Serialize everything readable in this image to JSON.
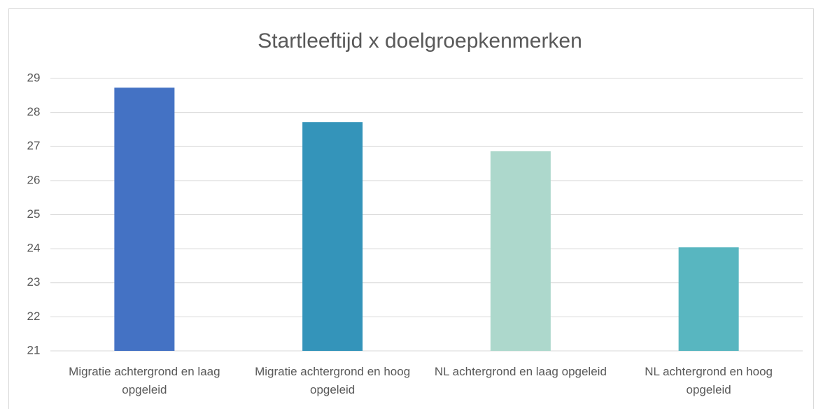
{
  "chart_data": {
    "type": "bar",
    "title": "Startleeftijd x doelgroepkenmerken",
    "categories": [
      "Migratie achtergrond en laag opgeleid",
      "Migratie achtergrond en hoog opgeleid",
      "NL achtergrond en laag opgeleid",
      "NL achtergrond en hoog opgeleid"
    ],
    "values": [
      28.73,
      27.72,
      26.86,
      24.04
    ],
    "colors": [
      "#4472c4",
      "#3494ba",
      "#add8cc",
      "#58b6c0"
    ],
    "ylim": [
      21,
      29
    ],
    "yticks": [
      21,
      22,
      23,
      24,
      25,
      26,
      27,
      28,
      29
    ],
    "grid": true
  }
}
